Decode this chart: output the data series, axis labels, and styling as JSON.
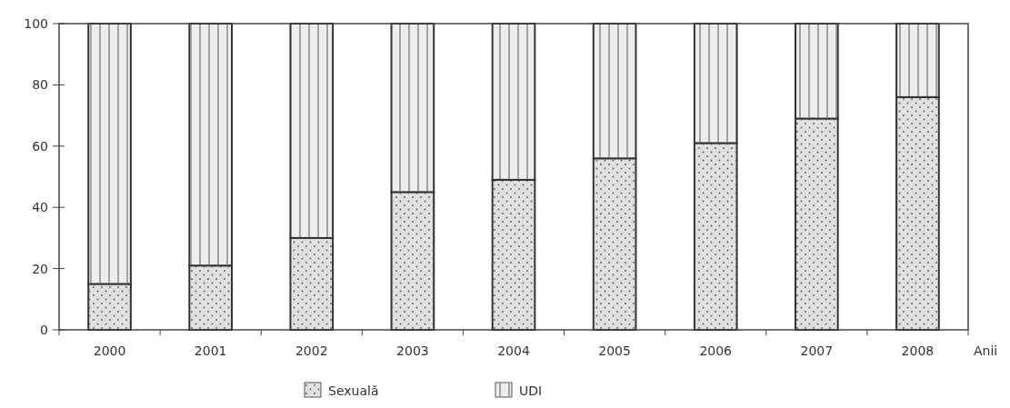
{
  "chart_data": {
    "type": "bar",
    "stacked": true,
    "xlabel": "Anii",
    "categories": [
      "2000",
      "2001",
      "2002",
      "2003",
      "2004",
      "2005",
      "2006",
      "2007",
      "2008"
    ],
    "series": [
      {
        "name": "Sexuală",
        "color": "#e0e0e0",
        "values": [
          15,
          21,
          30,
          45,
          49,
          56,
          61,
          69,
          76
        ]
      },
      {
        "name": "UDI",
        "color": "#eeeeee",
        "values": [
          85,
          79,
          70,
          55,
          51,
          44,
          39,
          31,
          24
        ]
      }
    ],
    "ylim": [
      0,
      100
    ],
    "yticks": [
      0,
      20,
      40,
      60,
      80,
      100
    ],
    "grid": false,
    "legend": "bottom"
  }
}
